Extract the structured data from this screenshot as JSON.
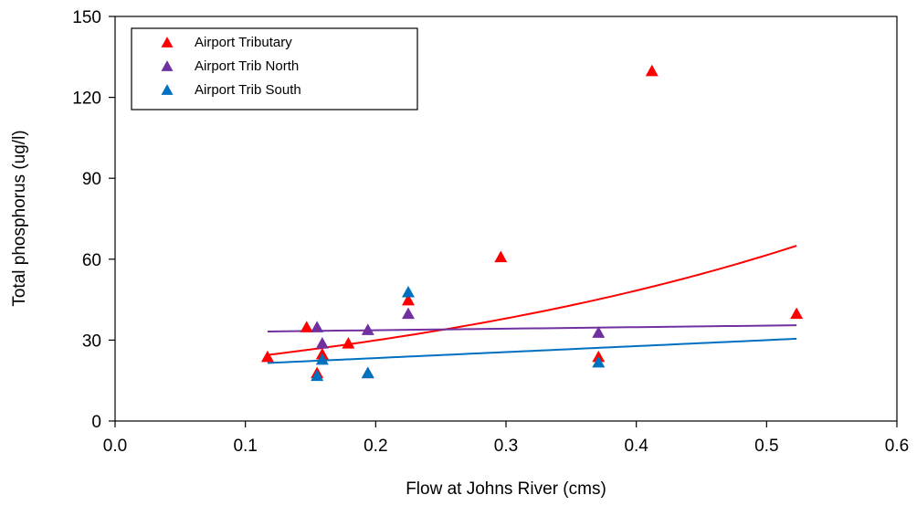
{
  "chart_data": {
    "type": "scatter",
    "title": "",
    "xlabel": "Flow at Johns River (cms)",
    "ylabel": "Total phosphorus (ug/l)",
    "xlim": [
      0,
      0.6
    ],
    "ylim": [
      0,
      150
    ],
    "x_ticks": [
      "0.0",
      "0.1",
      "0.2",
      "0.3",
      "0.4",
      "0.5",
      "0.6"
    ],
    "y_ticks": [
      "0",
      "30",
      "60",
      "90",
      "120",
      "150"
    ],
    "grid": false,
    "legend_position": "top-left",
    "series": [
      {
        "name": "Airport Tributary",
        "color": "#ff0000",
        "marker": "triangle",
        "points": [
          [
            0.117,
            24
          ],
          [
            0.147,
            35
          ],
          [
            0.155,
            18
          ],
          [
            0.159,
            25
          ],
          [
            0.179,
            29
          ],
          [
            0.194,
            18
          ],
          [
            0.225,
            45
          ],
          [
            0.296,
            61
          ],
          [
            0.371,
            24
          ],
          [
            0.412,
            130
          ],
          [
            0.523,
            40
          ]
        ],
        "trendline": {
          "type": "exponential",
          "x_range": [
            0.117,
            0.523
          ],
          "y_at_start": 24.5,
          "y_at_end": 65
        }
      },
      {
        "name": "Airport Trib North",
        "color": "#7030a0",
        "marker": "triangle",
        "points": [
          [
            0.155,
            35
          ],
          [
            0.159,
            29
          ],
          [
            0.194,
            34
          ],
          [
            0.225,
            40
          ],
          [
            0.371,
            33
          ]
        ],
        "trendline": {
          "type": "linear",
          "x_range": [
            0.117,
            0.523
          ],
          "y_at_start": 33.2,
          "y_at_end": 35.5
        }
      },
      {
        "name": "Airport Trib South",
        "color": "#0070c0",
        "marker": "triangle",
        "points": [
          [
            0.155,
            17
          ],
          [
            0.159,
            23
          ],
          [
            0.194,
            18
          ],
          [
            0.225,
            48
          ],
          [
            0.371,
            22
          ]
        ],
        "trendline": {
          "type": "linear",
          "x_range": [
            0.117,
            0.523
          ],
          "y_at_start": 21.5,
          "y_at_end": 30.5
        }
      }
    ]
  }
}
